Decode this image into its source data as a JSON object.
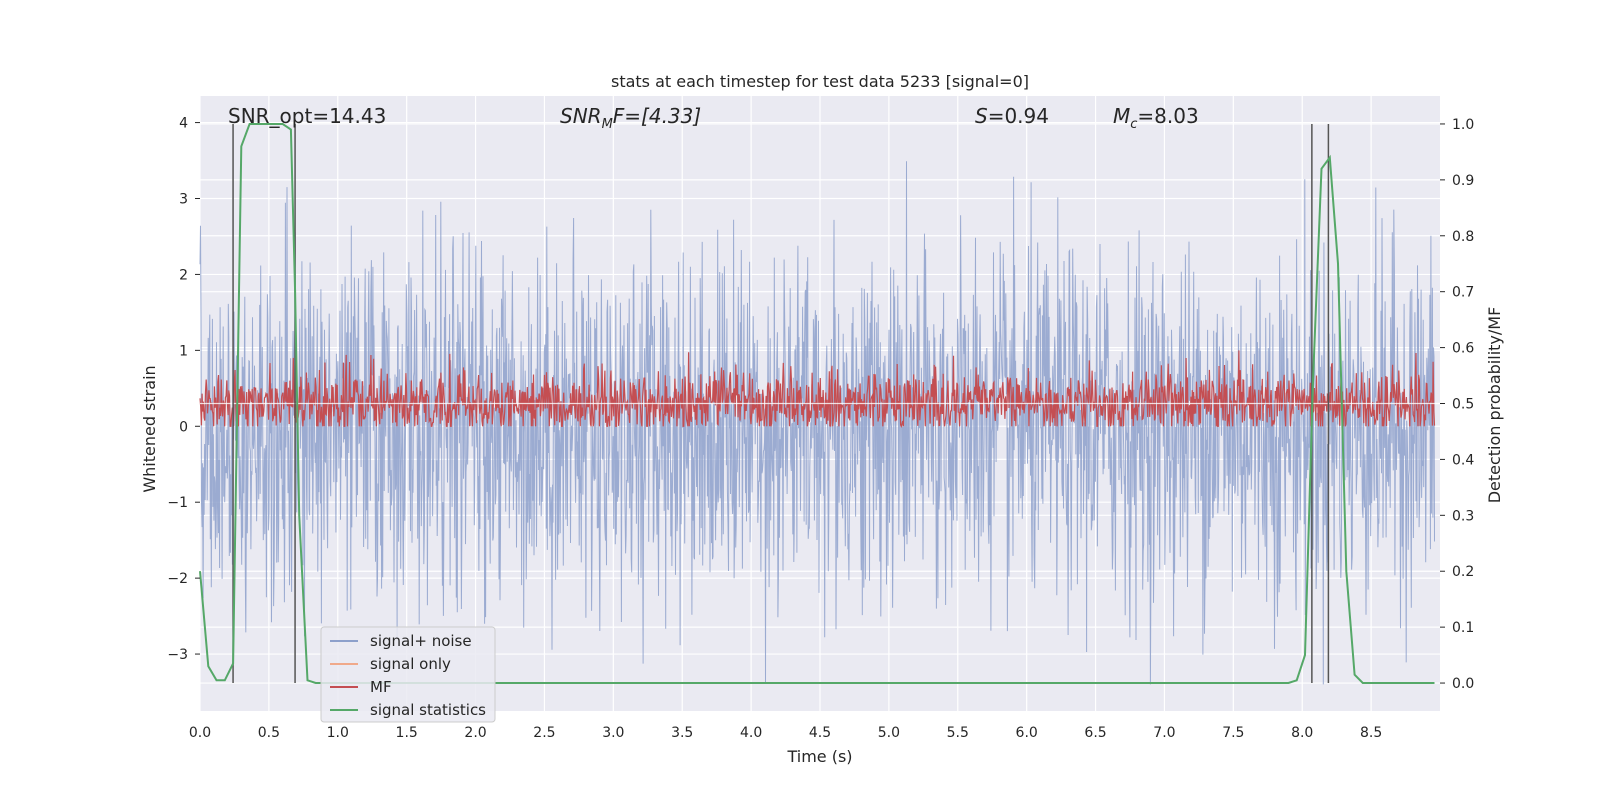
{
  "chart_data": {
    "type": "line",
    "title": "stats at each timestep for test data 5233 [signal=0]",
    "xlabel": "Time (s)",
    "ylabel_left": "Whitened strain",
    "ylabel_right": "Detection probability/MF",
    "xlim": [
      0.0,
      9.0
    ],
    "ylim_left": [
      -3.75,
      4.35
    ],
    "ylim_right": [
      -0.05,
      1.05
    ],
    "xticks": [
      "0.0",
      "0.5",
      "1.0",
      "1.5",
      "2.0",
      "2.5",
      "3.0",
      "3.5",
      "4.0",
      "4.5",
      "5.0",
      "5.5",
      "6.0",
      "6.5",
      "7.0",
      "7.5",
      "8.0",
      "8.5"
    ],
    "yticks_left": [
      "4",
      "3",
      "2",
      "1",
      "0",
      "−1",
      "−2",
      "−3"
    ],
    "yticks_right": [
      "1.0",
      "0.9",
      "0.8",
      "0.7",
      "0.6",
      "0.5",
      "0.4",
      "0.3",
      "0.2",
      "0.1",
      "0.0"
    ],
    "grid": true,
    "legend_position": "lower-left",
    "annotations": {
      "snr_opt": "SNR_opt=14.43",
      "snr_mf": "SNR_MF=[4.33]",
      "s": "S=0.94",
      "mc": "M_c=8.03"
    },
    "vertical_lines_s": [
      0.24,
      0.69,
      8.07,
      8.19
    ],
    "series": [
      {
        "name": "signal+ noise",
        "color": "#8da0cb",
        "description_values": "noise band roughly -2.5 to +2.5 with peaks to 4"
      },
      {
        "name": "signal only",
        "color": "#f0a98a",
        "values": []
      },
      {
        "name": "MF",
        "color": "#c44e52",
        "baseline": 0.3,
        "range": [
          0.0,
          1.0
        ]
      },
      {
        "name": "signal statistics",
        "color": "#55a868",
        "axis": "right",
        "x": [
          0.0,
          0.06,
          0.12,
          0.18,
          0.24,
          0.3,
          0.36,
          0.42,
          0.48,
          0.54,
          0.6,
          0.66,
          0.69,
          0.72,
          0.78,
          0.84,
          0.9,
          1.0,
          7.9,
          7.96,
          8.02,
          8.08,
          8.14,
          8.2,
          8.26,
          8.32,
          8.38,
          8.44,
          8.5,
          8.96
        ],
        "values": [
          0.2,
          0.03,
          0.005,
          0.005,
          0.035,
          0.96,
          1.0,
          1.0,
          1.0,
          1.0,
          1.0,
          0.99,
          0.7,
          0.3,
          0.005,
          0.0,
          0.0,
          0.0,
          0.0,
          0.005,
          0.05,
          0.55,
          0.92,
          0.94,
          0.75,
          0.2,
          0.015,
          0.0,
          0.0,
          0.0
        ]
      }
    ]
  }
}
